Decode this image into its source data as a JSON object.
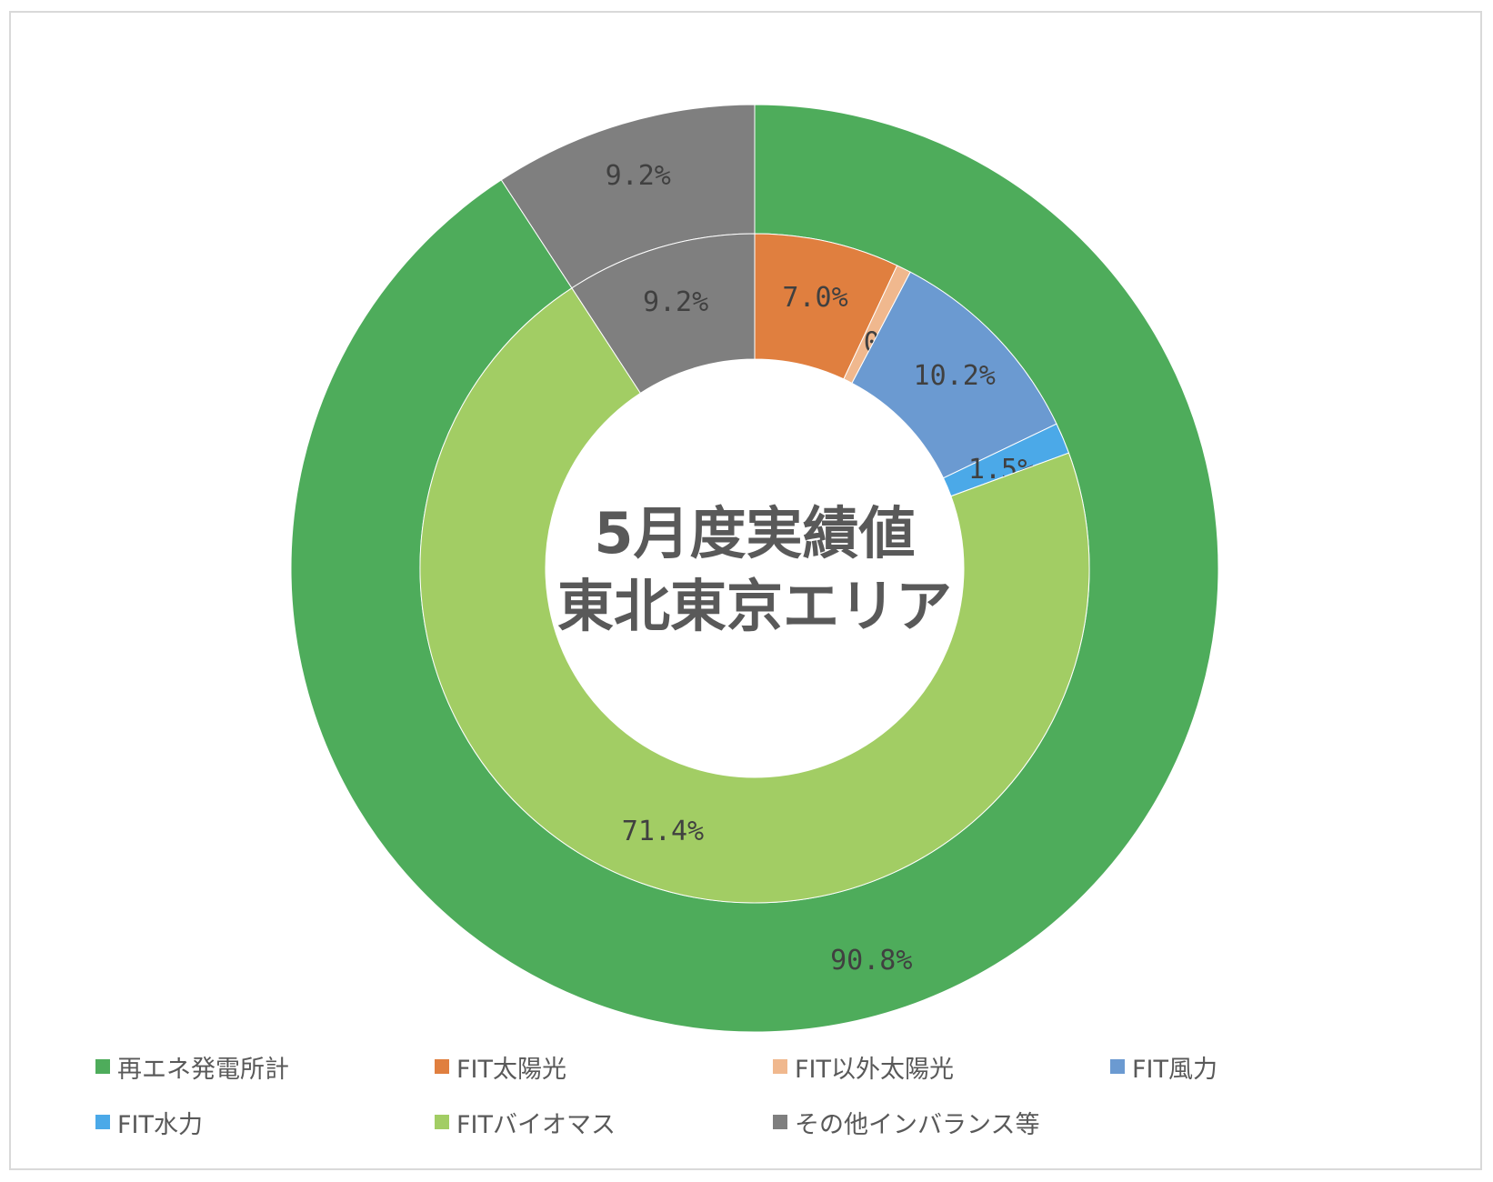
{
  "chart_data": {
    "type": "pie",
    "title": "5月度実績値\n東北東京エリア",
    "title_lines": [
      "5月度実績値",
      "東北東京エリア"
    ],
    "style": "nested donut",
    "legend_position": "bottom",
    "series": [
      {
        "ring": "outer",
        "categories": [
          "再エネ発電所計",
          "その他インバランス等"
        ],
        "values": [
          90.8,
          9.2
        ],
        "labels": [
          "90.8%",
          "9.2%"
        ],
        "colors": [
          "#4EAC5B",
          "#7F7F7F"
        ]
      },
      {
        "ring": "inner",
        "categories": [
          "FIT太陽光",
          "FIT以外太陽光",
          "FIT風力",
          "FIT水力",
          "FITバイオマス",
          "その他インバランス等"
        ],
        "values": [
          7.0,
          0.7,
          10.2,
          1.5,
          71.4,
          9.2
        ],
        "labels": [
          "7.0%",
          "0.7%",
          "10.2%",
          "1.5%",
          "71.4%",
          "9.2%"
        ],
        "colors": [
          "#E07F3F",
          "#F0B88E",
          "#6B9AD1",
          "#4BA9E8",
          "#A2CD64",
          "#7F7F7F"
        ]
      }
    ],
    "legend": [
      {
        "label": "再エネ発電所計",
        "color": "#4EAC5B"
      },
      {
        "label": "FIT太陽光",
        "color": "#E07F3F"
      },
      {
        "label": "FIT以外太陽光",
        "color": "#F0B88E"
      },
      {
        "label": "FIT風力",
        "color": "#6B9AD1"
      },
      {
        "label": "FIT水力",
        "color": "#4BA9E8"
      },
      {
        "label": "FITバイオマス",
        "color": "#A2CD64"
      },
      {
        "label": "その他インバランス等",
        "color": "#7F7F7F"
      }
    ]
  }
}
